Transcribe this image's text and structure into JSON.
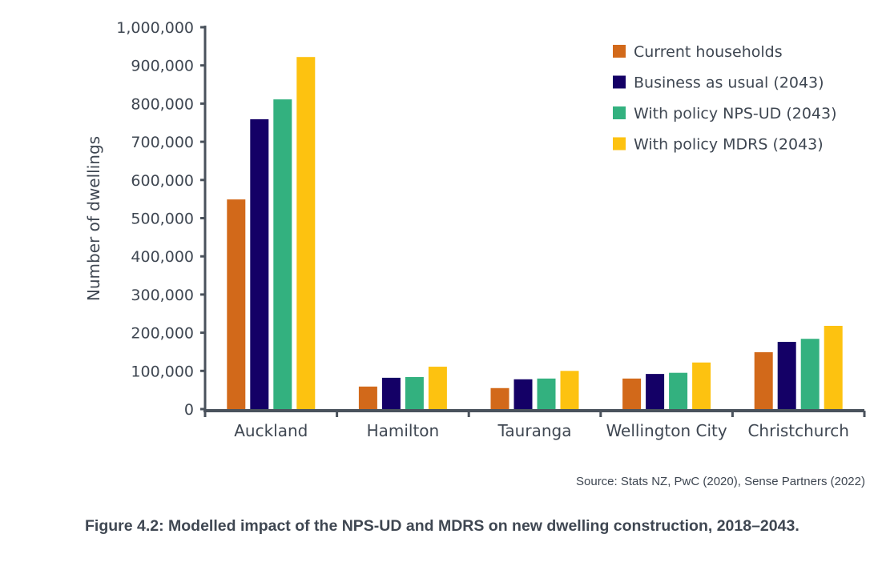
{
  "chart_data": {
    "type": "bar",
    "title": "",
    "xlabel": "",
    "ylabel": "Number of dwellings",
    "ylim": [
      0,
      1000000
    ],
    "yticks": [
      0,
      100000,
      200000,
      300000,
      400000,
      500000,
      600000,
      700000,
      800000,
      900000,
      1000000
    ],
    "ytick_labels": [
      "0",
      "100,000",
      "200,000",
      "300,000",
      "400,000",
      "500,000",
      "600,000",
      "700,000",
      "800,000",
      "900,000",
      "1,000,000"
    ],
    "categories": [
      "Auckland",
      "Hamilton",
      "Tauranga",
      "Wellington City",
      "Christchurch"
    ],
    "series": [
      {
        "name": "Current households",
        "color": "#d2691a",
        "values": [
          549000,
          59000,
          55000,
          80000,
          149000
        ]
      },
      {
        "name": "Business as usual (2043)",
        "color": "#140066",
        "values": [
          759000,
          82000,
          78000,
          92000,
          176000
        ]
      },
      {
        "name": "With policy NPS-UD (2043)",
        "color": "#33b17f",
        "values": [
          811000,
          84000,
          80000,
          95000,
          184000
        ]
      },
      {
        "name": "With policy MDRS (2043)",
        "color": "#fdc210",
        "values": [
          922000,
          111000,
          100000,
          122000,
          218000
        ]
      }
    ],
    "legend_position": "top-right",
    "grid": false
  },
  "source": "Source: Stats NZ, PwC (2020), Sense Partners (2022)",
  "caption": "Figure 4.2: Modelled impact of the NPS-UD and MDRS on new dwelling construction, 2018–2043."
}
